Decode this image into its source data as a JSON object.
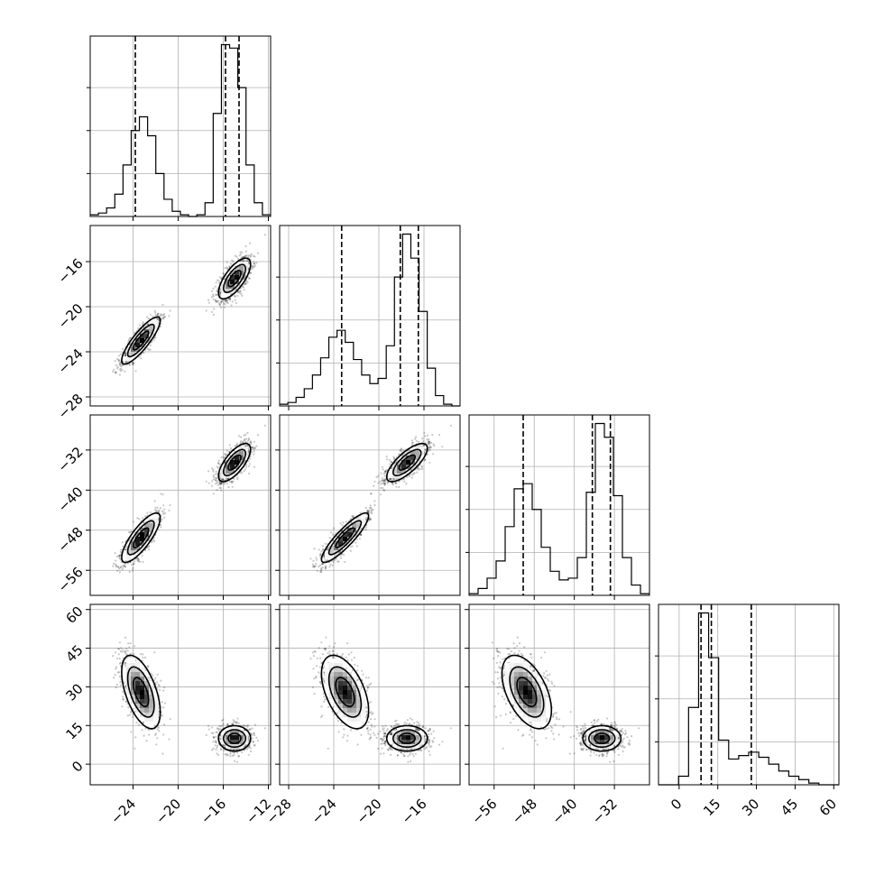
{
  "chart_data": {
    "type": "corner",
    "parameters": [
      {
        "range": [
          -27.8,
          -11.8
        ],
        "ticks": [
          -24,
          -20,
          -16,
          -12
        ],
        "tick_labels": [
          "−24",
          "−20",
          "−16",
          "−12"
        ],
        "quantiles": [
          -23.8,
          -15.8,
          -14.6
        ],
        "hist_bins": [
          0.01,
          0.02,
          0.05,
          0.13,
          0.3,
          0.5,
          0.58,
          0.47,
          0.25,
          0.1,
          0.03,
          0.01,
          0.0,
          0.01,
          0.08,
          0.6,
          1.0,
          0.98,
          0.75,
          0.3,
          0.08,
          0.01
        ],
        "hist_ymax": 1.05
      },
      {
        "range": [
          -28.8,
          -12.8
        ],
        "ticks": [
          -28,
          -24,
          -20,
          -16
        ],
        "tick_labels": [
          "−28",
          "−24",
          "−20",
          "−16"
        ],
        "quantiles": [
          -23.3,
          -18.1,
          -16.5
        ],
        "hist_bins": [
          0.01,
          0.02,
          0.05,
          0.1,
          0.18,
          0.28,
          0.4,
          0.44,
          0.37,
          0.27,
          0.18,
          0.13,
          0.16,
          0.35,
          0.75,
          1.0,
          0.86,
          0.55,
          0.22,
          0.06,
          0.01,
          0.0
        ],
        "hist_ymax": 1.05
      },
      {
        "range": [
          -61,
          -25
        ],
        "ticks": [
          -56,
          -48,
          -40,
          -32
        ],
        "tick_labels": [
          "−56",
          "−48",
          "−40",
          "−32"
        ],
        "quantiles": [
          -50.2,
          -36.4,
          -32.8
        ],
        "hist_bins": [
          0.01,
          0.04,
          0.1,
          0.2,
          0.4,
          0.62,
          0.65,
          0.5,
          0.28,
          0.14,
          0.09,
          0.1,
          0.22,
          0.6,
          1.0,
          0.92,
          0.58,
          0.22,
          0.06,
          0.01
        ],
        "hist_ymax": 1.05
      },
      {
        "range": [
          -8,
          62
        ],
        "ticks": [
          0,
          15,
          30,
          45,
          60
        ],
        "tick_labels": [
          "0",
          "15",
          "30",
          "45",
          "60"
        ],
        "quantiles": [
          8.5,
          12.5,
          28
        ],
        "hist_bins": [
          0.0,
          0.0,
          0.05,
          0.45,
          1.0,
          0.74,
          0.26,
          0.15,
          0.17,
          0.19,
          0.16,
          0.12,
          0.08,
          0.05,
          0.03,
          0.01,
          0.0,
          0.0
        ],
        "hist_ymax": 1.05
      }
    ],
    "modes": [
      {
        "center": [
          -23.3,
          -23.0,
          -49.5,
          28.0
        ],
        "std": [
          0.9,
          1.1,
          2.6,
          7.5
        ],
        "corr": [
          [
            1,
            0.85,
            0.8,
            -0.55
          ],
          [
            0.85,
            1,
            0.88,
            -0.5
          ],
          [
            0.8,
            0.88,
            1,
            -0.5
          ],
          [
            -0.55,
            -0.5,
            -0.5,
            1
          ]
        ]
      },
      {
        "center": [
          -15.0,
          -17.5,
          -34.5,
          10.0
        ],
        "std": [
          0.75,
          0.95,
          2.0,
          2.6
        ],
        "corr": [
          [
            1,
            0.7,
            0.7,
            0.0
          ],
          [
            0.7,
            1,
            0.75,
            0.0
          ],
          [
            0.7,
            0.75,
            1,
            0.0
          ],
          [
            0.0,
            0.0,
            0.0,
            1
          ]
        ]
      }
    ]
  }
}
